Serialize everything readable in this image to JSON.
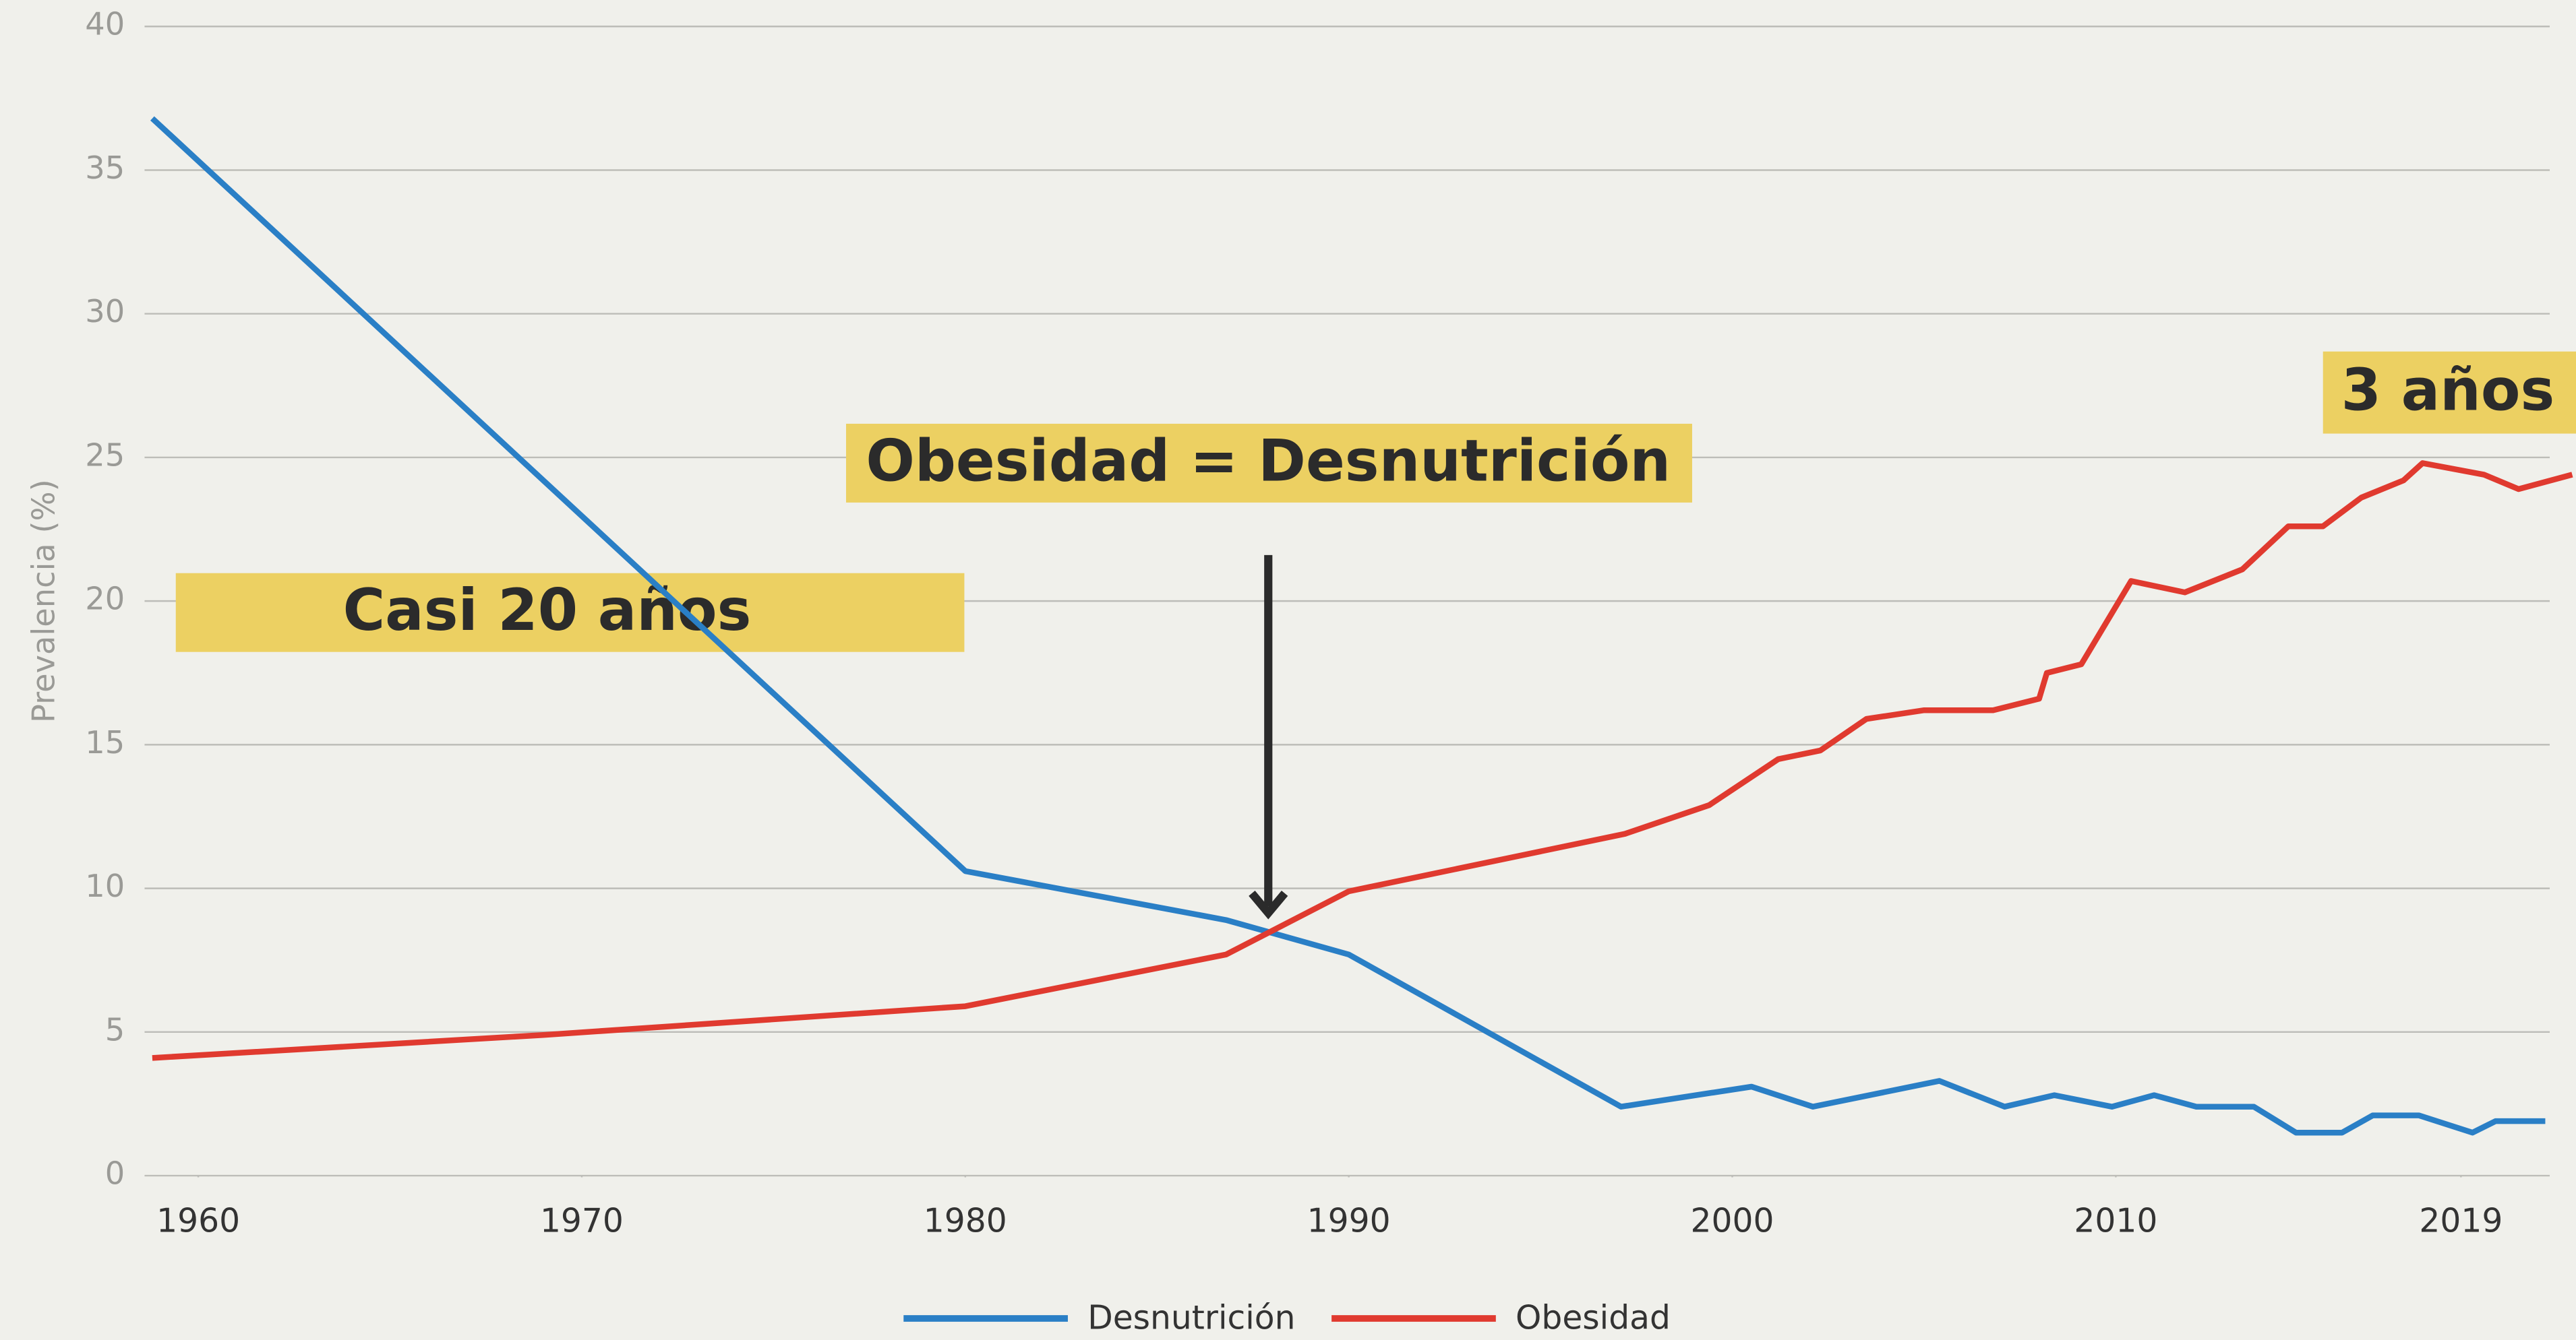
{
  "chart_data": {
    "type": "line",
    "y_label": "Prevalencia (%)",
    "xlim": [
      1958.6,
      2022
    ],
    "xticks": [
      1960,
      1970,
      1980,
      1990,
      2000,
      2010,
      2019
    ],
    "ylim": [
      0,
      40
    ],
    "yticks": [
      0,
      5,
      10,
      15,
      20,
      25,
      30,
      35,
      40
    ],
    "grid": true,
    "legend": "bottom",
    "annotations": [
      "Casi 20 años",
      "Obesidad = Desnutrición",
      "3 años"
    ],
    "series": [
      {
        "name": "Desnutrición",
        "color": "#2a7fc6",
        "x": [
          1958.8,
          1980,
          1986.8,
          1990,
          1997.1,
          2000.5,
          2002.1,
          2005.4,
          2007.1,
          2008.4,
          2009.9,
          2011,
          2012.1,
          2013.6,
          2014.7,
          2015.9,
          2016.7,
          2017.9,
          2019.3,
          2019.9,
          2021.2
        ],
        "values": [
          36.8,
          10.6,
          8.9,
          7.7,
          2.4,
          3.1,
          2.4,
          3.3,
          2.4,
          2.8,
          2.4,
          2.8,
          2.4,
          2.4,
          1.5,
          1.5,
          2.1,
          2.1,
          1.5,
          1.9,
          1.9
        ]
      },
      {
        "name": "Obesidad",
        "color": "#e03a2f",
        "x": [
          1958.8,
          1969,
          1980,
          1986.8,
          1990,
          1997.2,
          1999.4,
          2001.2,
          2002.3,
          2003.5,
          2005,
          2006.8,
          2008,
          2008.2,
          2009.1,
          2010.4,
          2011.8,
          2013.3,
          2014.5,
          2015.4,
          2016.4,
          2017.5,
          2018,
          2019.6,
          2020.5,
          2021.9
        ],
        "values": [
          4.1,
          4.9,
          5.9,
          7.7,
          9.9,
          11.9,
          12.9,
          14.5,
          14.8,
          15.9,
          16.2,
          16.2,
          16.6,
          17.5,
          17.8,
          20.7,
          20.3,
          21.1,
          22.6,
          22.6,
          23.6,
          24.2,
          24.8,
          24.4,
          23.9,
          24.4
        ]
      }
    ]
  }
}
